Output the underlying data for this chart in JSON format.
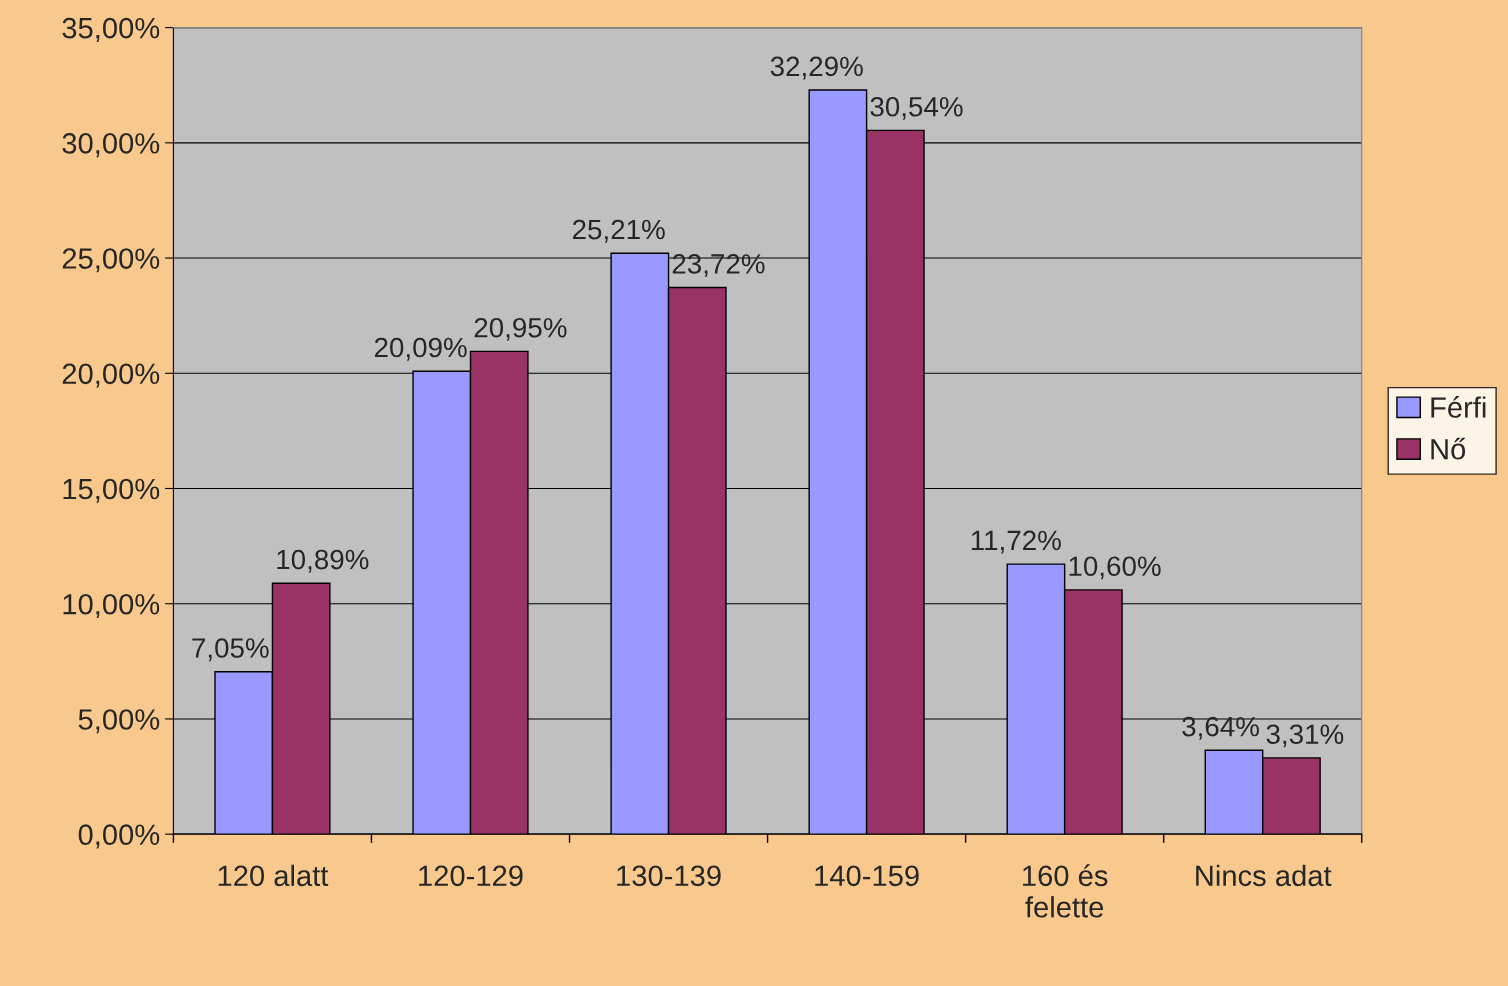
{
  "chart_data": {
    "type": "bar",
    "categories": [
      "120 alatt",
      "120-129",
      "130-139",
      "140-159",
      "160 és\nfelette",
      "Nincs adat"
    ],
    "series": [
      {
        "name": "Férfi",
        "color": "#9999ff",
        "values": [
          7.05,
          20.09,
          25.21,
          32.29,
          11.72,
          3.64
        ],
        "value_labels": [
          "7,05%",
          "20,09%",
          "25,21%",
          "32,29%",
          "11,72%",
          "3,64%"
        ]
      },
      {
        "name": "Nő",
        "color": "#993366",
        "values": [
          10.89,
          20.95,
          23.72,
          30.54,
          10.6,
          3.31
        ],
        "value_labels": [
          "10,89%",
          "20,95%",
          "23,72%",
          "30,54%",
          "10,60%",
          "3,31%"
        ]
      }
    ],
    "ylim": [
      0,
      35
    ],
    "yticks": [
      {
        "value": 0,
        "label": "0,00%"
      },
      {
        "value": 5,
        "label": "5,00%"
      },
      {
        "value": 10,
        "label": "10,00%"
      },
      {
        "value": 15,
        "label": "15,00%"
      },
      {
        "value": 20,
        "label": "20,00%"
      },
      {
        "value": 25,
        "label": "25,00%"
      },
      {
        "value": 30,
        "label": "30,00%"
      },
      {
        "value": 35,
        "label": "35,00%"
      }
    ],
    "grid": "y",
    "legend": "right"
  }
}
